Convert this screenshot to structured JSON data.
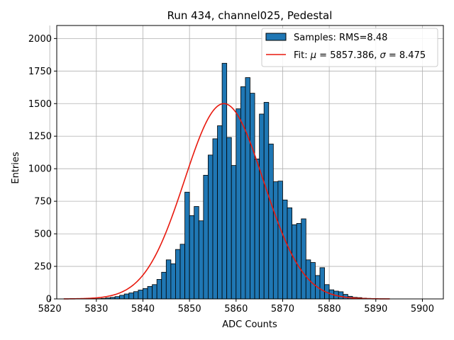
{
  "chart_data": {
    "type": "bar",
    "title": "Run 434, channel025, Pedestal",
    "xlabel": "ADC Counts",
    "ylabel": "Entries",
    "xlim": [
      5821.5,
      5904.5
    ],
    "ylim": [
      0,
      2100
    ],
    "xticks": [
      5820,
      5830,
      5840,
      5850,
      5860,
      5870,
      5880,
      5890,
      5900
    ],
    "yticks": [
      0,
      250,
      500,
      750,
      1000,
      1250,
      1500,
      1750,
      2000
    ],
    "grid": true,
    "legend_position": "top-right",
    "bin_start": 5823,
    "bin_width": 1,
    "histogram": {
      "name": "Samples: RMS=8.48",
      "values": [
        0,
        0,
        0,
        0,
        0,
        0,
        0,
        2,
        4,
        8,
        12,
        18,
        28,
        38,
        46,
        56,
        68,
        80,
        96,
        110,
        150,
        205,
        300,
        270,
        380,
        420,
        820,
        640,
        710,
        600,
        950,
        1105,
        1230,
        1330,
        1810,
        1240,
        1025,
        1460,
        1630,
        1700,
        1580,
        1075,
        1420,
        1510,
        1190,
        900,
        905,
        760,
        700,
        570,
        580,
        615,
        300,
        280,
        180,
        240,
        110,
        70,
        60,
        55,
        35,
        20,
        12,
        10,
        6,
        4,
        2,
        1,
        1,
        0
      ]
    },
    "fit": {
      "name_prefix": "Fit: ",
      "mu_symbol": "μ",
      "mu_text": " = 5857.386, ",
      "sigma_symbol": "σ",
      "sigma_text": " = 8.475",
      "mu": 5857.386,
      "sigma": 8.475,
      "amplitude": 1500,
      "range": [
        5823,
        5893
      ]
    },
    "colors": {
      "bar_fill": "#1f77b4",
      "bar_edge": "#000000",
      "fit_line": "#e8190e",
      "grid": "#b0b0b0"
    }
  }
}
